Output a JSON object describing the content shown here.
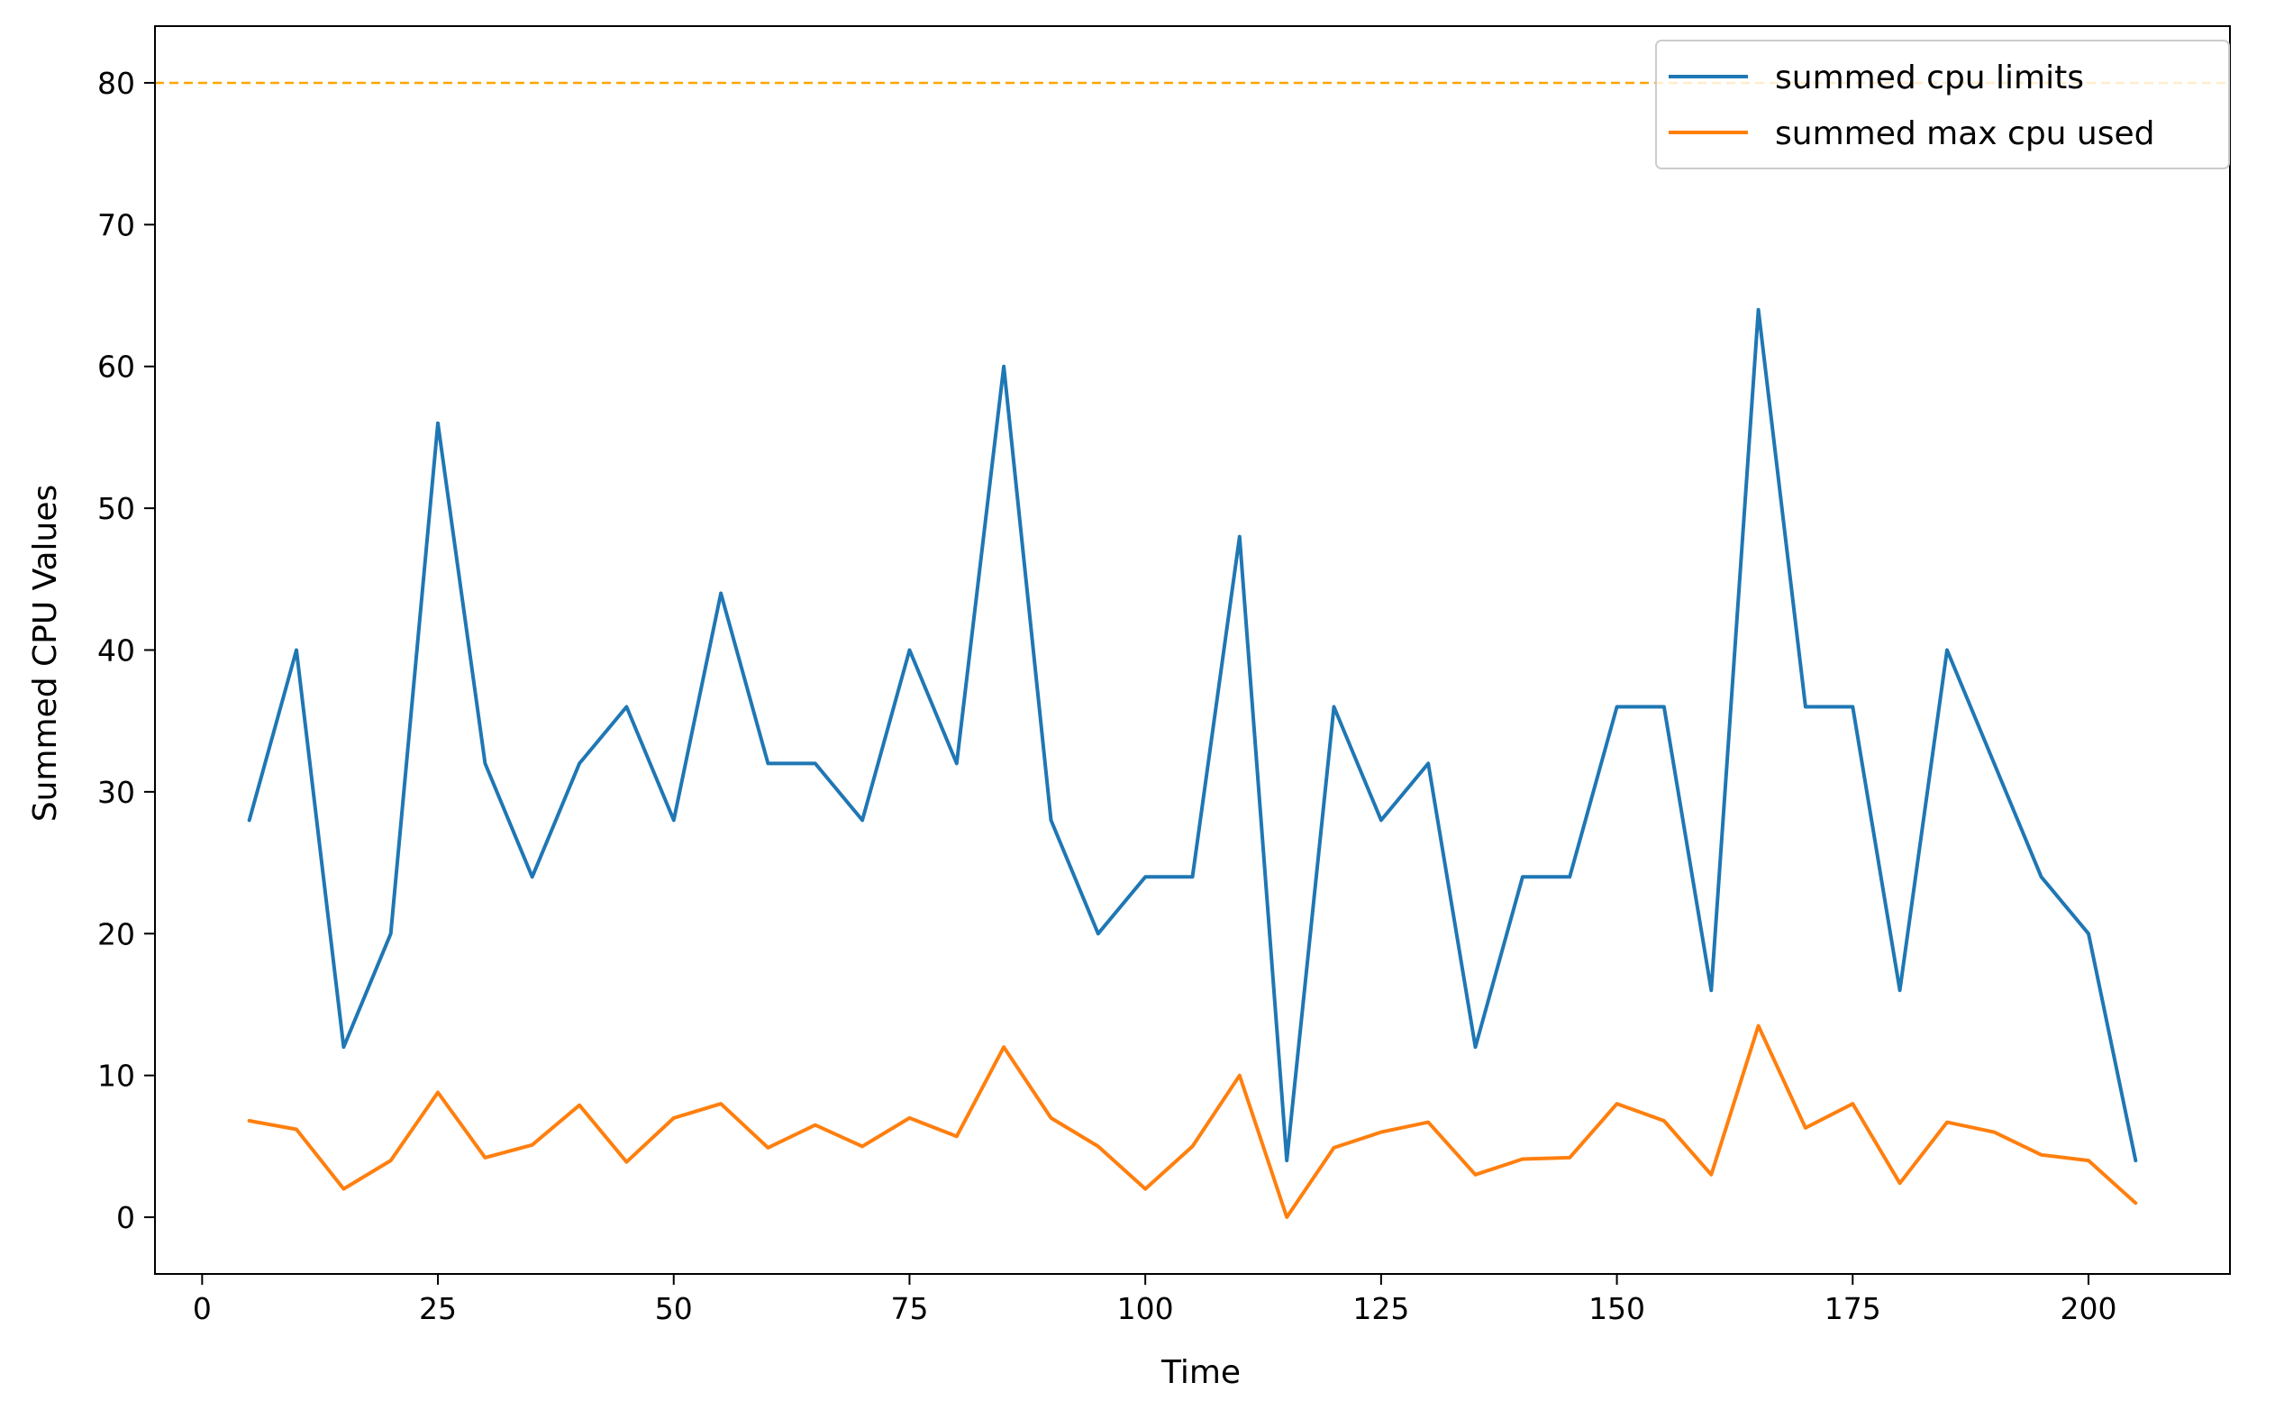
{
  "chart_data": {
    "type": "line",
    "title": "",
    "xlabel": "Time",
    "ylabel": "Summed CPU Values",
    "xlim": [
      -5,
      215
    ],
    "ylim": [
      -4,
      84
    ],
    "xticks": [
      0,
      25,
      50,
      75,
      100,
      125,
      150,
      175,
      200
    ],
    "yticks": [
      0,
      10,
      20,
      30,
      40,
      50,
      60,
      70,
      80
    ],
    "x": [
      5,
      10,
      15,
      20,
      25,
      30,
      35,
      40,
      45,
      50,
      55,
      60,
      65,
      70,
      75,
      80,
      85,
      90,
      95,
      100,
      105,
      110,
      115,
      120,
      125,
      130,
      135,
      140,
      145,
      150,
      155,
      160,
      165,
      170,
      175,
      180,
      185,
      190,
      195,
      200,
      205
    ],
    "series": [
      {
        "name": "summed cpu limits",
        "color": "#1f77b4",
        "values": [
          28,
          40,
          12,
          20,
          56,
          32,
          24,
          32,
          36,
          28,
          44,
          32,
          32,
          28,
          40,
          32,
          60,
          28,
          20,
          24,
          24,
          48,
          4,
          36,
          28,
          32,
          12,
          24,
          24,
          36,
          36,
          16,
          64,
          36,
          36,
          16,
          40,
          32,
          24,
          20,
          4
        ]
      },
      {
        "name": "summed max cpu used",
        "color": "#ff7f0e",
        "values": [
          6.8,
          6.2,
          2.0,
          4.0,
          8.8,
          4.2,
          5.1,
          7.9,
          3.9,
          7.0,
          8.0,
          4.9,
          6.5,
          5.0,
          7.0,
          5.7,
          12.0,
          7.0,
          5.0,
          2.0,
          5.0,
          10.0,
          0.0,
          4.9,
          6.0,
          6.7,
          3.0,
          4.1,
          4.2,
          8.0,
          6.8,
          3.0,
          13.5,
          6.3,
          8.0,
          2.4,
          6.7,
          6.0,
          4.4,
          4.0,
          1.0
        ]
      }
    ],
    "hlines": [
      {
        "y": 80,
        "color": "#ffa500",
        "style": "dashed"
      }
    ],
    "grid": false,
    "legend_position": "top-right"
  }
}
